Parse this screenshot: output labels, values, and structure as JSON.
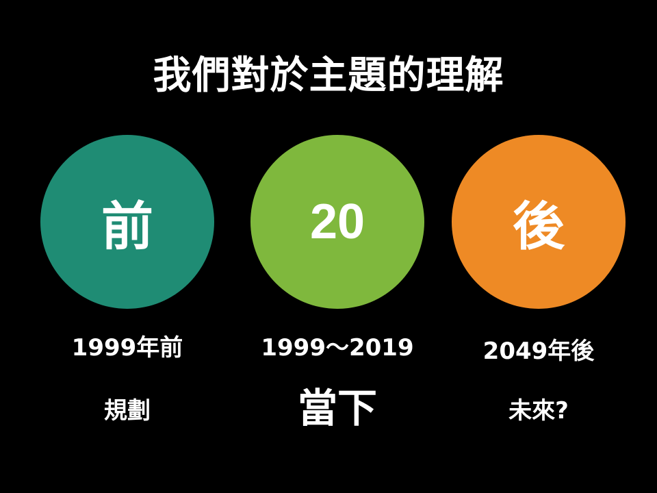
{
  "title": "我們對於主題的理解",
  "columns": [
    {
      "circle_text": "前",
      "circle_color": "#1F8C74",
      "year": "1999年前",
      "description": "規劃"
    },
    {
      "circle_text": "20",
      "circle_color": "#7FB83D",
      "year": "1999～2019",
      "description": "當下"
    },
    {
      "circle_text": "後",
      "circle_color": "#EE8A25",
      "year": "2049年後",
      "description": "未來?"
    }
  ]
}
